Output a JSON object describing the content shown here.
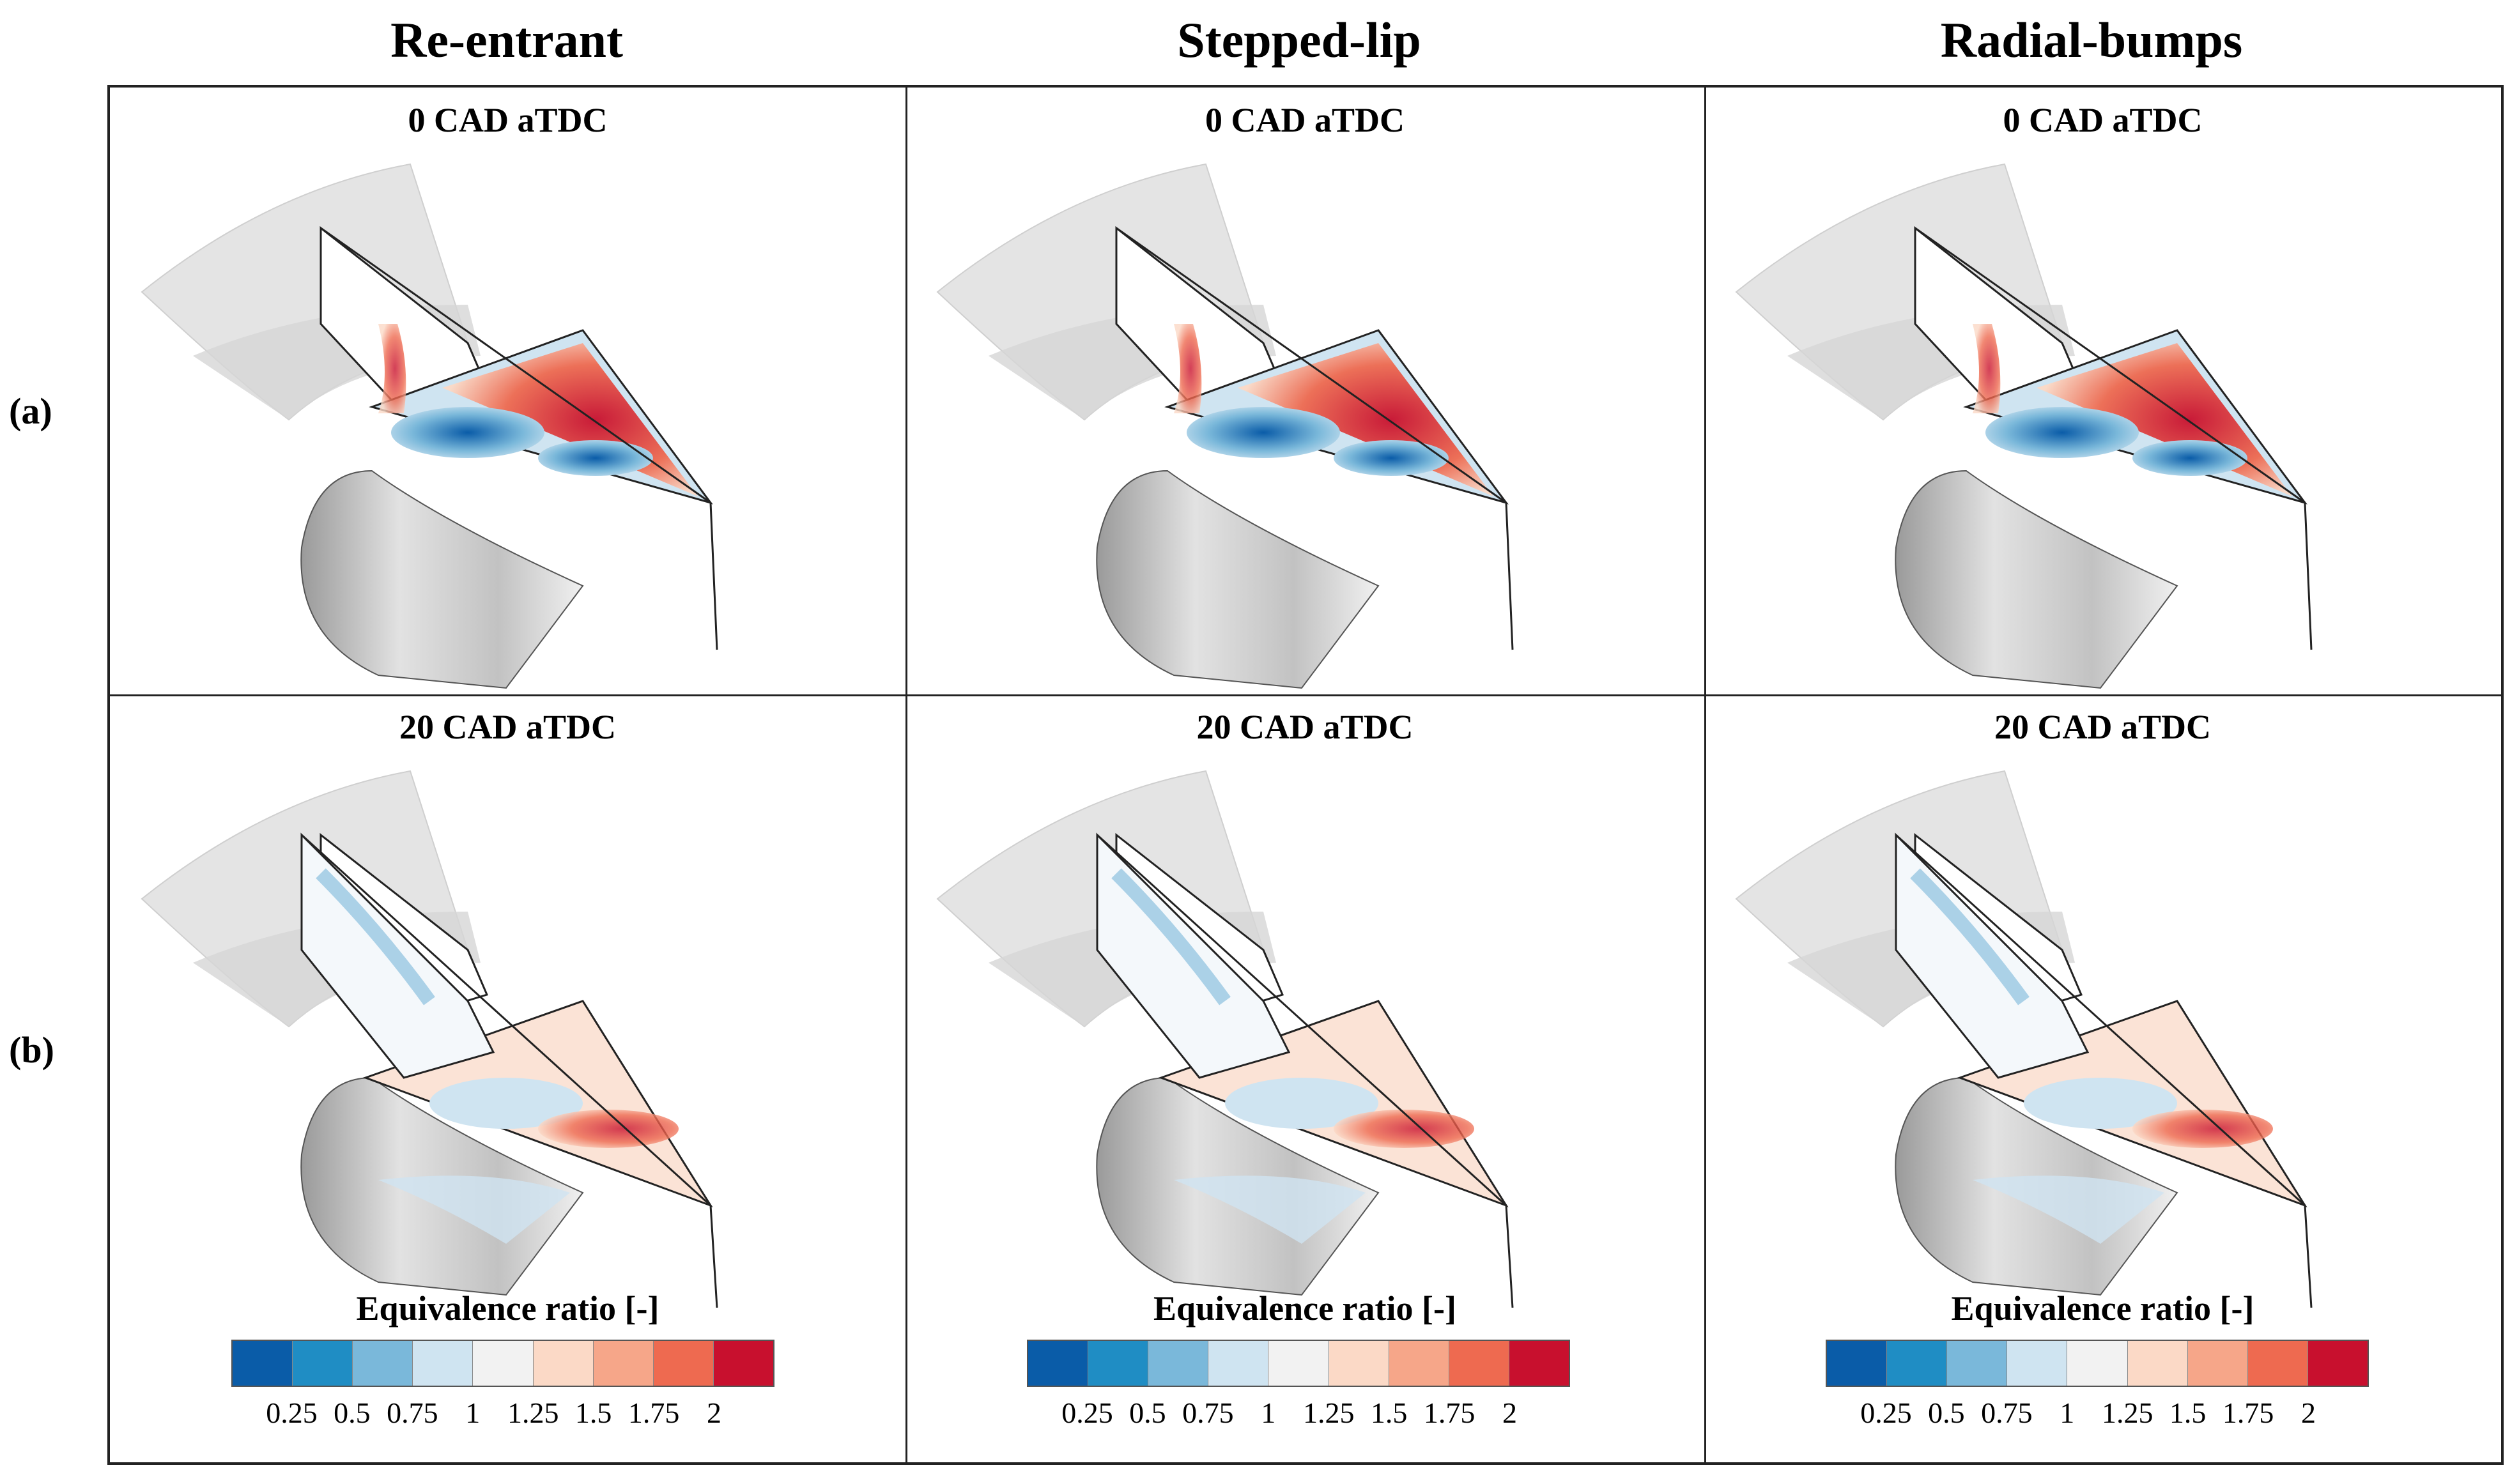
{
  "columns": [
    "Re-entrant",
    "Stepped-lip",
    "Radial-bumps"
  ],
  "rows": [
    {
      "label": "(a)",
      "cad": "0 CAD aTDC"
    },
    {
      "label": "(b)",
      "cad": "20 CAD aTDC"
    }
  ],
  "colorbar": {
    "title": "Equivalence ratio [-]",
    "ticks": [
      "0.25",
      "0.5",
      "0.75",
      "1",
      "1.25",
      "1.5",
      "1.75",
      "2"
    ],
    "colors": [
      "#0a5ca8",
      "#1f8dc4",
      "#7ab8da",
      "#cfe4f1",
      "#f2f2f2",
      "#fbd9c6",
      "#f6a689",
      "#ee6a50",
      "#c8102e"
    ]
  }
}
